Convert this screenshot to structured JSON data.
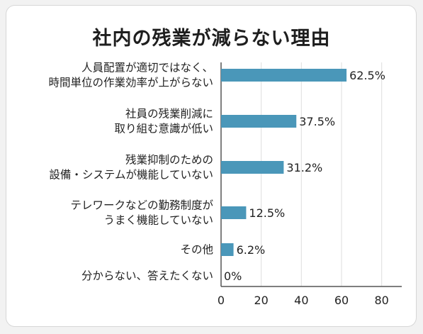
{
  "chart_data": {
    "type": "bar",
    "orientation": "horizontal",
    "title": "社内の残業が減らない理由",
    "categories": [
      [
        "人員配置が適切ではなく、",
        "時間単位の作業効率が上がらない"
      ],
      [
        "社員の残業削減に",
        "取り組む意識が低い"
      ],
      [
        "残業抑制のための",
        "設備・システムが機能していない"
      ],
      [
        "テレワークなどの勤務制度が",
        "うまく機能していない"
      ],
      [
        "その他"
      ],
      [
        "分からない、答えたくない"
      ]
    ],
    "values": [
      62.5,
      37.5,
      31.2,
      12.5,
      6.2,
      0
    ],
    "value_labels": [
      "62.5%",
      "37.5%",
      "31.2%",
      "12.5%",
      "6.2%",
      "0%"
    ],
    "xlim": [
      0,
      90
    ],
    "xticks": [
      0,
      20,
      40,
      60,
      80
    ],
    "grid": "vertical",
    "bar_color": "#4a97b9"
  }
}
